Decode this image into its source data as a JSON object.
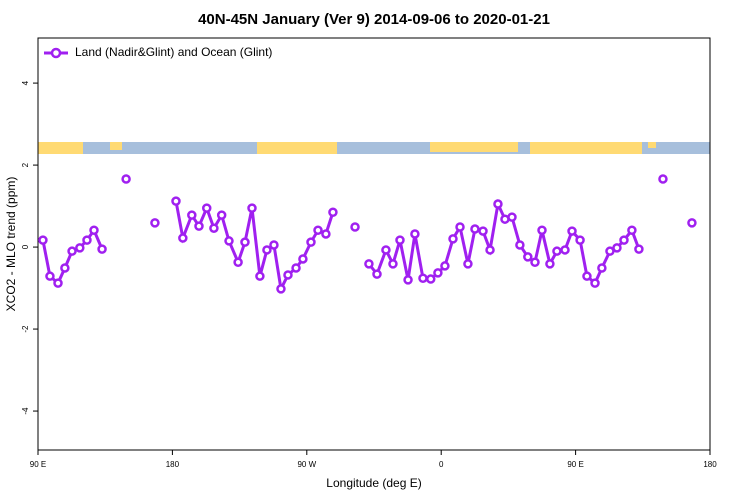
{
  "chart_data": {
    "type": "line",
    "title": "40N-45N January (Ver 9)   2014-09-06 to 2020-01-21",
    "x_label": "Longitude (deg E)",
    "y_label": "XCO2 - MLO trend (ppm)",
    "xlim": [
      90,
      540
    ],
    "xticks": [
      {
        "value": 90,
        "label": "90 E"
      },
      {
        "value": 180,
        "label": "180"
      },
      {
        "value": 270,
        "label": "90 W"
      },
      {
        "value": 360,
        "label": "0"
      },
      {
        "value": 450,
        "label": "90 E"
      },
      {
        "value": 540,
        "label": "180"
      }
    ],
    "ylim": [
      -4.95,
      5.1
    ],
    "yticks": [
      -4,
      -2,
      0,
      2,
      4
    ],
    "legend": "top-left",
    "x": [
      93.3,
      98.0,
      103.4,
      108.0,
      112.8,
      118.0,
      122.8,
      127.5,
      132.9,
      null,
      149.0,
      null,
      168.3,
      null,
      182.4,
      187.0,
      193.0,
      197.8,
      203.0,
      207.8,
      213.0,
      217.9,
      224.0,
      228.6,
      233.3,
      238.6,
      243.3,
      248.0,
      252.7,
      257.4,
      262.8,
      267.4,
      272.8,
      277.5,
      282.8,
      287.5,
      null,
      302.3,
      null,
      311.6,
      317.0,
      323.0,
      327.7,
      332.4,
      337.8,
      342.4,
      347.8,
      353.0,
      357.8,
      362.5,
      367.9,
      372.6,
      377.9,
      382.6,
      388.0,
      392.7,
      398.0,
      402.7,
      407.4,
      412.7,
      418.0,
      422.8,
      427.5,
      432.8,
      437.5,
      442.9,
      447.6,
      453.0,
      457.6,
      463.0,
      467.6,
      473.0,
      477.7,
      482.4,
      487.7,
      492.4,
      null,
      508.5,
      null,
      527.9
    ],
    "series": [
      {
        "name": "Land (Nadir&Glint) and Ocean (Glint)",
        "color": "#a020f0",
        "values": [
          0.17,
          -0.71,
          -0.88,
          -0.51,
          -0.1,
          -0.02,
          0.17,
          0.41,
          -0.05,
          null,
          1.66,
          null,
          0.59,
          null,
          1.12,
          0.22,
          0.78,
          0.51,
          0.95,
          0.46,
          0.78,
          0.15,
          -0.37,
          0.12,
          0.95,
          -0.71,
          -0.07,
          0.05,
          -1.02,
          -0.68,
          -0.51,
          -0.29,
          0.12,
          0.41,
          0.32,
          0.85,
          null,
          0.49,
          null,
          -0.41,
          -0.66,
          -0.07,
          -0.41,
          0.17,
          -0.8,
          0.32,
          -0.76,
          -0.78,
          -0.63,
          -0.46,
          0.2,
          0.49,
          -0.41,
          0.44,
          0.39,
          -0.07,
          1.05,
          0.68,
          0.73,
          0.05,
          -0.24,
          -0.37,
          0.41,
          -0.41,
          -0.1,
          -0.07,
          0.39,
          0.17,
          -0.71,
          -0.88,
          -0.51,
          -0.1,
          -0.02,
          0.17,
          0.41,
          -0.05,
          null,
          1.66,
          null,
          0.59
        ]
      }
    ]
  }
}
